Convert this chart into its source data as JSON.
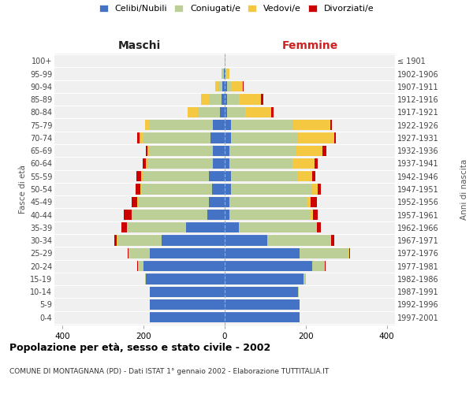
{
  "age_groups": [
    "0-4",
    "5-9",
    "10-14",
    "15-19",
    "20-24",
    "25-29",
    "30-34",
    "35-39",
    "40-44",
    "45-49",
    "50-54",
    "55-59",
    "60-64",
    "65-69",
    "70-74",
    "75-79",
    "80-84",
    "85-89",
    "90-94",
    "95-99",
    "100+"
  ],
  "birth_years": [
    "1997-2001",
    "1992-1996",
    "1987-1991",
    "1982-1986",
    "1977-1981",
    "1972-1976",
    "1967-1971",
    "1962-1966",
    "1957-1961",
    "1952-1956",
    "1947-1951",
    "1942-1946",
    "1937-1941",
    "1932-1936",
    "1927-1931",
    "1922-1926",
    "1917-1921",
    "1912-1916",
    "1907-1911",
    "1902-1906",
    "≤ 1901"
  ],
  "males": {
    "celibi": [
      185,
      185,
      185,
      195,
      200,
      185,
      155,
      95,
      42,
      38,
      32,
      38,
      30,
      30,
      35,
      30,
      12,
      8,
      5,
      2,
      0
    ],
    "coniugati": [
      0,
      0,
      0,
      2,
      12,
      50,
      110,
      145,
      185,
      175,
      175,
      165,
      160,
      155,
      165,
      155,
      55,
      30,
      10,
      3,
      0
    ],
    "vedovi": [
      0,
      0,
      0,
      0,
      2,
      2,
      2,
      2,
      2,
      2,
      2,
      3,
      5,
      5,
      10,
      12,
      25,
      20,
      8,
      2,
      0
    ],
    "divorziati": [
      0,
      0,
      0,
      0,
      2,
      3,
      5,
      12,
      20,
      15,
      10,
      12,
      8,
      5,
      5,
      0,
      0,
      0,
      0,
      0,
      0
    ]
  },
  "females": {
    "nubili": [
      185,
      185,
      180,
      195,
      215,
      185,
      105,
      35,
      12,
      12,
      15,
      15,
      12,
      12,
      15,
      15,
      5,
      5,
      5,
      2,
      0
    ],
    "coniugate": [
      0,
      0,
      2,
      5,
      30,
      120,
      155,
      190,
      200,
      190,
      200,
      165,
      155,
      165,
      165,
      155,
      45,
      30,
      10,
      2,
      0
    ],
    "vedove": [
      0,
      0,
      0,
      0,
      2,
      2,
      2,
      3,
      5,
      10,
      15,
      35,
      55,
      65,
      90,
      90,
      65,
      55,
      30,
      8,
      2
    ],
    "divorziate": [
      0,
      0,
      0,
      0,
      2,
      3,
      8,
      10,
      12,
      15,
      8,
      8,
      8,
      8,
      5,
      5,
      5,
      5,
      2,
      0,
      0
    ]
  },
  "colors": {
    "celibi": "#4472C4",
    "coniugati": "#BBCF96",
    "vedovi": "#F5C842",
    "divorziati": "#CC0000"
  },
  "legend_labels": [
    "Celibi/Nubili",
    "Coniugati/e",
    "Vedovi/e",
    "Divorziati/e"
  ],
  "title": "Popolazione per età, sesso e stato civile - 2002",
  "subtitle": "COMUNE DI MONTAGNANA (PD) - Dati ISTAT 1° gennaio 2002 - Elaborazione TUTTITALIA.IT",
  "xlabel_left": "Maschi",
  "xlabel_right": "Femmine",
  "ylabel_left": "Fasce di età",
  "ylabel_right": "Anni di nascita",
  "xlim": 420,
  "background_color": "#f0f0f0"
}
